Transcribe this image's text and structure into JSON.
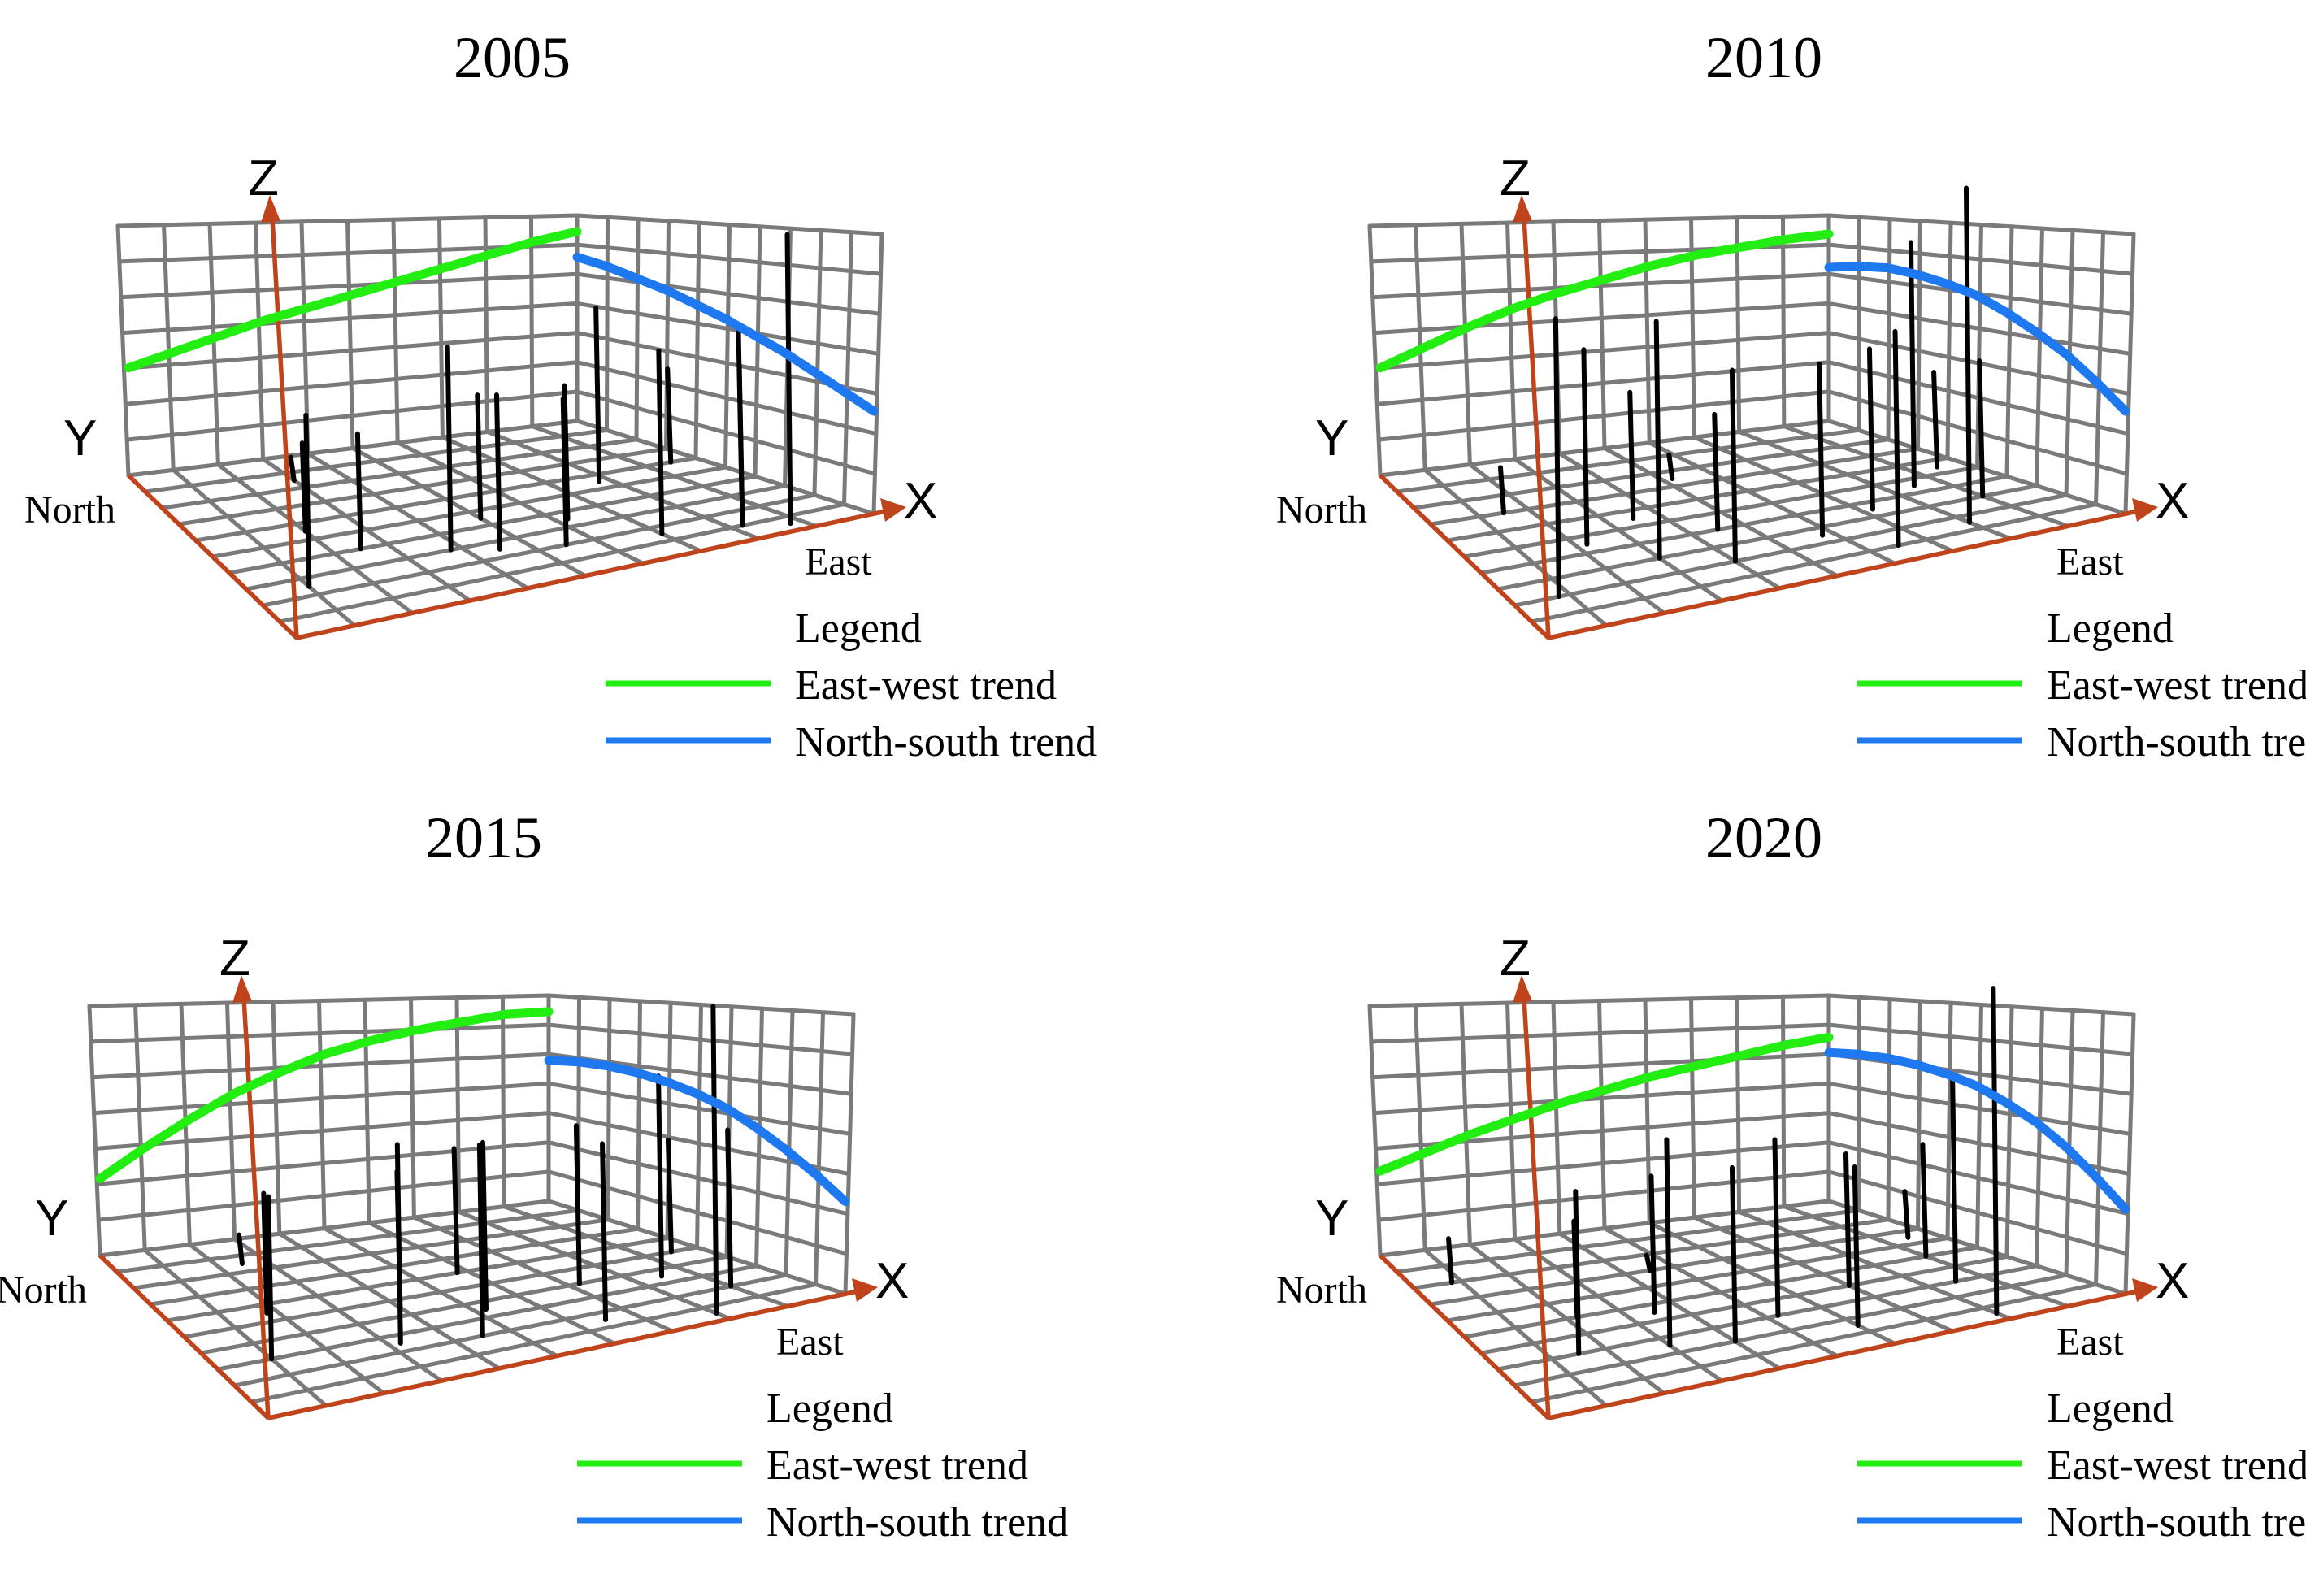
{
  "colors": {
    "east_west_trend": "#22ee11",
    "north_south_trend": "#1e78f0",
    "grid": "#7a7a7a",
    "axis": "#c0441b",
    "sample_points": "#000000"
  },
  "chart_data": [
    {
      "type": "3d-trend-analysis",
      "title": "2005",
      "axes": {
        "x": "X",
        "y": "Y",
        "z": "Z"
      },
      "directions": {
        "north": "North",
        "east": "East"
      },
      "legend": {
        "title": "Legend",
        "east_west": "East-west trend",
        "north_south": "North-south trend"
      },
      "zlim": [
        0,
        1
      ],
      "east_west_trend": {
        "x": [
          0,
          0.1,
          0.2,
          0.3,
          0.4,
          0.5,
          0.6,
          0.7,
          0.8,
          0.9,
          1.0
        ],
        "z": [
          0.42,
          0.46,
          0.5,
          0.54,
          0.57,
          0.6,
          0.63,
          0.66,
          0.69,
          0.72,
          0.74
        ]
      },
      "north_south_trend": {
        "y": [
          0,
          0.1,
          0.2,
          0.3,
          0.4,
          0.5,
          0.6,
          0.7,
          0.8,
          0.9,
          1.0
        ],
        "z": [
          0.64,
          0.64,
          0.63,
          0.62,
          0.6,
          0.58,
          0.55,
          0.52,
          0.48,
          0.44,
          0.4
        ]
      },
      "samples": [
        {
          "x": 0.1,
          "y": 0.25,
          "z": 0.5
        },
        {
          "x": 0.2,
          "y": 0.55,
          "z": 0.28
        },
        {
          "x": 0.25,
          "y": 0.4,
          "z": 0.35
        },
        {
          "x": 0.3,
          "y": 0.85,
          "z": 0.08
        },
        {
          "x": 0.38,
          "y": 0.3,
          "z": 0.6
        },
        {
          "x": 0.45,
          "y": 0.25,
          "z": 0.45
        },
        {
          "x": 0.5,
          "y": 0.45,
          "z": 0.38
        },
        {
          "x": 0.55,
          "y": 0.2,
          "z": 0.42
        },
        {
          "x": 0.62,
          "y": 0.35,
          "z": 0.4
        },
        {
          "x": 0.7,
          "y": 0.15,
          "z": 0.52
        },
        {
          "x": 0.78,
          "y": 0.55,
          "z": 0.55
        },
        {
          "x": 0.82,
          "y": 0.1,
          "z": 0.45
        },
        {
          "x": 0.88,
          "y": 0.05,
          "z": 0.8
        },
        {
          "x": 0.92,
          "y": 0.3,
          "z": 0.48
        },
        {
          "x": 0.95,
          "y": 0.6,
          "z": 0.3
        }
      ]
    },
    {
      "type": "3d-trend-analysis",
      "title": "2010",
      "axes": {
        "x": "X",
        "y": "Y",
        "z": "Z"
      },
      "directions": {
        "north": "North",
        "east": "East"
      },
      "legend": {
        "title": "Legend",
        "east_west": "East-west trend",
        "north_south": "North-south trend"
      },
      "zlim": [
        0,
        1
      ],
      "east_west_trend": {
        "x": [
          0,
          0.1,
          0.2,
          0.3,
          0.4,
          0.5,
          0.6,
          0.7,
          0.8,
          0.9,
          1.0
        ],
        "z": [
          0.42,
          0.48,
          0.54,
          0.59,
          0.63,
          0.66,
          0.69,
          0.71,
          0.72,
          0.73,
          0.73
        ]
      },
      "north_south_trend": {
        "y": [
          0,
          0.1,
          0.2,
          0.3,
          0.4,
          0.5,
          0.6,
          0.7,
          0.8,
          0.9,
          1.0
        ],
        "z": [
          0.6,
          0.64,
          0.67,
          0.68,
          0.68,
          0.67,
          0.64,
          0.6,
          0.55,
          0.48,
          0.4
        ]
      },
      "samples": [
        {
          "x": 0.08,
          "y": 0.2,
          "z": 0.8
        },
        {
          "x": 0.15,
          "y": 0.7,
          "z": 0.15
        },
        {
          "x": 0.22,
          "y": 0.45,
          "z": 0.6
        },
        {
          "x": 0.3,
          "y": 0.3,
          "z": 0.7
        },
        {
          "x": 0.35,
          "y": 0.55,
          "z": 0.4
        },
        {
          "x": 0.4,
          "y": 0.2,
          "z": 0.55
        },
        {
          "x": 0.45,
          "y": 0.4,
          "z": 0.35
        },
        {
          "x": 0.52,
          "y": 0.75,
          "z": 0.08
        },
        {
          "x": 0.58,
          "y": 0.25,
          "z": 0.5
        },
        {
          "x": 0.65,
          "y": 0.1,
          "z": 0.6
        },
        {
          "x": 0.72,
          "y": 0.35,
          "z": 0.48
        },
        {
          "x": 0.8,
          "y": 0.15,
          "z": 0.95
        },
        {
          "x": 0.85,
          "y": 0.45,
          "z": 0.75
        },
        {
          "x": 0.9,
          "y": 0.3,
          "z": 0.4
        },
        {
          "x": 0.95,
          "y": 0.55,
          "z": 0.3
        }
      ]
    },
    {
      "type": "3d-trend-analysis",
      "title": "2015",
      "axes": {
        "x": "X",
        "y": "Y",
        "z": "Z"
      },
      "directions": {
        "north": "North",
        "east": "East"
      },
      "legend": {
        "title": "Legend",
        "east_west": "East-west trend",
        "north_south": "North-south trend"
      },
      "zlim": [
        0,
        1
      ],
      "east_west_trend": {
        "x": [
          0,
          0.1,
          0.2,
          0.3,
          0.4,
          0.5,
          0.6,
          0.7,
          0.8,
          0.9,
          1.0
        ],
        "z": [
          0.3,
          0.4,
          0.49,
          0.57,
          0.63,
          0.68,
          0.71,
          0.73,
          0.74,
          0.75,
          0.74
        ]
      },
      "north_south_trend": {
        "y": [
          0,
          0.1,
          0.2,
          0.3,
          0.4,
          0.5,
          0.6,
          0.7,
          0.8,
          0.9,
          1.0
        ],
        "z": [
          0.55,
          0.58,
          0.6,
          0.61,
          0.61,
          0.6,
          0.58,
          0.54,
          0.49,
          0.43,
          0.36
        ]
      },
      "samples": [
        {
          "x": 0.1,
          "y": 0.3,
          "z": 0.48
        },
        {
          "x": 0.18,
          "y": 0.55,
          "z": 0.38
        },
        {
          "x": 0.25,
          "y": 0.85,
          "z": 0.1
        },
        {
          "x": 0.32,
          "y": 0.25,
          "z": 0.58
        },
        {
          "x": 0.4,
          "y": 0.45,
          "z": 0.42
        },
        {
          "x": 0.45,
          "y": 0.2,
          "z": 0.55
        },
        {
          "x": 0.52,
          "y": 0.35,
          "z": 0.5
        },
        {
          "x": 0.58,
          "y": 0.6,
          "z": 0.4
        },
        {
          "x": 0.65,
          "y": 0.15,
          "z": 0.5
        },
        {
          "x": 0.72,
          "y": 0.4,
          "z": 0.48
        },
        {
          "x": 0.8,
          "y": 0.05,
          "z": 0.85
        },
        {
          "x": 0.85,
          "y": 0.35,
          "z": 0.6
        },
        {
          "x": 0.9,
          "y": 0.2,
          "z": 0.45
        },
        {
          "x": 0.95,
          "y": 0.5,
          "z": 0.35
        }
      ]
    },
    {
      "type": "3d-trend-analysis",
      "title": "2020",
      "axes": {
        "x": "X",
        "y": "Y",
        "z": "Z"
      },
      "directions": {
        "north": "North",
        "east": "East"
      },
      "legend": {
        "title": "Legend",
        "east_west": "East-west trend",
        "north_south": "North-south trend"
      },
      "zlim": [
        0,
        1
      ],
      "east_west_trend": {
        "x": [
          0,
          0.1,
          0.2,
          0.3,
          0.4,
          0.5,
          0.6,
          0.7,
          0.8,
          0.9,
          1.0
        ],
        "z": [
          0.33,
          0.38,
          0.43,
          0.47,
          0.51,
          0.54,
          0.57,
          0.59,
          0.61,
          0.63,
          0.64
        ]
      },
      "north_south_trend": {
        "y": [
          0,
          0.1,
          0.2,
          0.3,
          0.4,
          0.5,
          0.6,
          0.7,
          0.8,
          0.9,
          1.0
        ],
        "z": [
          0.58,
          0.61,
          0.63,
          0.64,
          0.64,
          0.63,
          0.6,
          0.56,
          0.5,
          0.42,
          0.33
        ]
      },
      "samples": [
        {
          "x": 0.08,
          "y": 0.8,
          "z": 0.15
        },
        {
          "x": 0.15,
          "y": 0.3,
          "z": 0.48
        },
        {
          "x": 0.22,
          "y": 0.5,
          "z": 0.3
        },
        {
          "x": 0.3,
          "y": 0.25,
          "z": 0.6
        },
        {
          "x": 0.35,
          "y": 0.45,
          "z": 0.42
        },
        {
          "x": 0.4,
          "y": 0.2,
          "z": 0.5
        },
        {
          "x": 0.45,
          "y": 0.7,
          "z": 0.05
        },
        {
          "x": 0.52,
          "y": 0.3,
          "z": 0.52
        },
        {
          "x": 0.6,
          "y": 0.15,
          "z": 0.45
        },
        {
          "x": 0.7,
          "y": 0.4,
          "z": 0.4
        },
        {
          "x": 0.8,
          "y": 0.05,
          "z": 0.9
        },
        {
          "x": 0.85,
          "y": 0.3,
          "z": 0.6
        },
        {
          "x": 0.9,
          "y": 0.5,
          "z": 0.35
        },
        {
          "x": 0.95,
          "y": 0.65,
          "z": 0.15
        }
      ]
    }
  ]
}
